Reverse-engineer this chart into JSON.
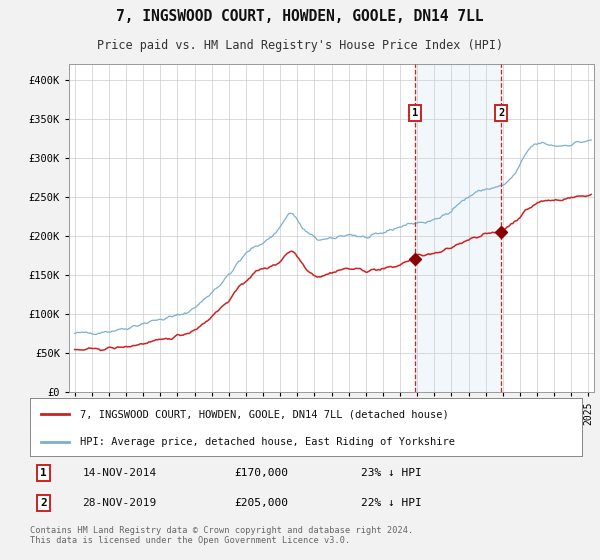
{
  "title": "7, INGSWOOD COURT, HOWDEN, GOOLE, DN14 7LL",
  "subtitle": "Price paid vs. HM Land Registry's House Price Index (HPI)",
  "ylim": [
    0,
    420000
  ],
  "yticks": [
    0,
    50000,
    100000,
    150000,
    200000,
    250000,
    300000,
    350000,
    400000
  ],
  "ytick_labels": [
    "£0",
    "£50K",
    "£100K",
    "£150K",
    "£200K",
    "£250K",
    "£300K",
    "£350K",
    "£400K"
  ],
  "hpi_color": "#7bafd4",
  "property_color": "#cc2222",
  "marker_color": "#8b0000",
  "vline_color": "#cc2222",
  "shade_color": "#ddeeff",
  "annotation_box_color": "#cc2222",
  "sale1_date": "14-NOV-2014",
  "sale1_price": 170000,
  "sale1_hpi_pct": "23%",
  "sale2_date": "28-NOV-2019",
  "sale2_price": 205000,
  "sale2_hpi_pct": "22%",
  "legend1": "7, INGSWOOD COURT, HOWDEN, GOOLE, DN14 7LL (detached house)",
  "legend2": "HPI: Average price, detached house, East Riding of Yorkshire",
  "footnote": "Contains HM Land Registry data © Crown copyright and database right 2024.\nThis data is licensed under the Open Government Licence v3.0.",
  "background_color": "#f2f2f2",
  "plot_bg_color": "#ffffff",
  "grid_color": "#cccccc"
}
